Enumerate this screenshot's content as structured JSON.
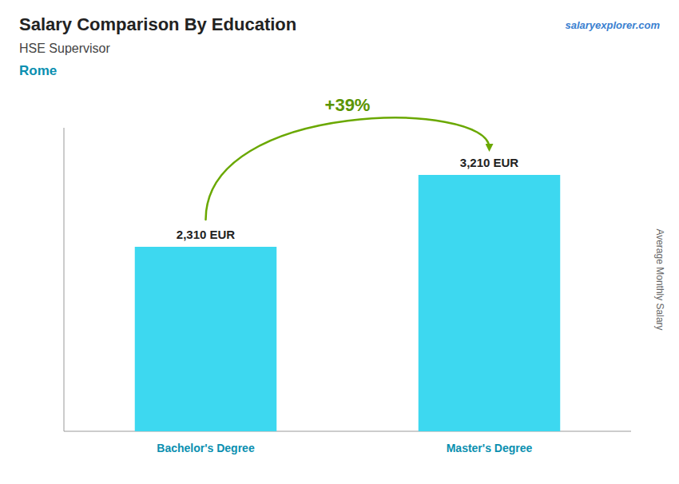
{
  "chart_data": {
    "type": "bar",
    "title": "Salary Comparison By Education",
    "subtitle": "HSE Supervisor",
    "annotations": [
      "Rome",
      "salaryexplorer.com",
      "+39%"
    ],
    "y_label": "Average Monthly Salary",
    "categories": [
      "Bachelor's Degree",
      "Master's Degree"
    ],
    "values": [
      2310,
      3210
    ],
    "value_labels": [
      "2,310 EUR",
      "3,210 EUR"
    ],
    "data_labels": true,
    "color": "#3dd8f0",
    "ylim": [
      0,
      3800
    ],
    "tick_labels": false,
    "grid": false
  }
}
